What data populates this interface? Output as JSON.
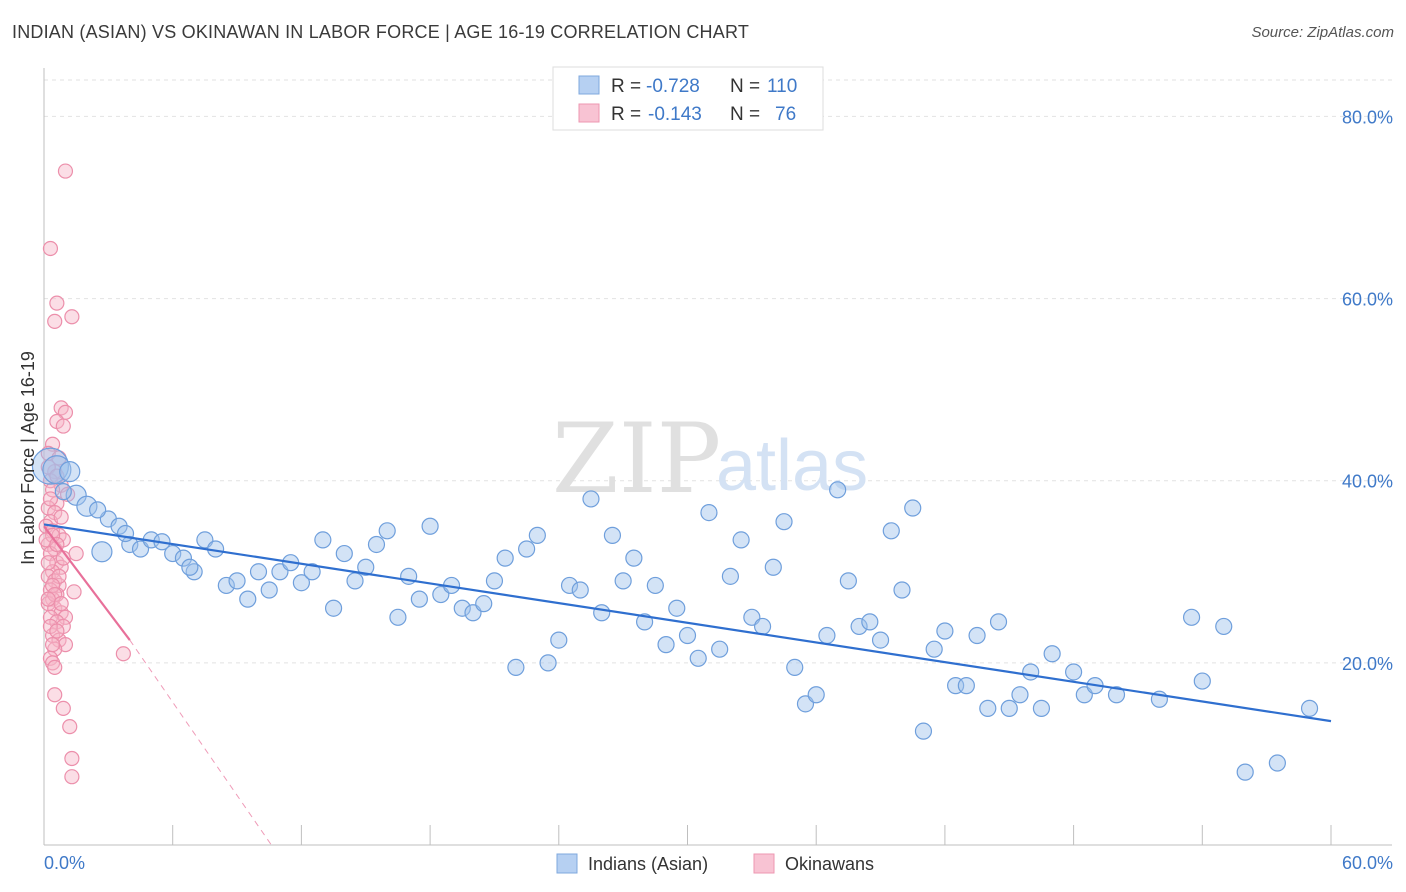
{
  "title": "INDIAN (ASIAN) VS OKINAWAN IN LABOR FORCE | AGE 16-19 CORRELATION CHART",
  "source": "Source: ZipAtlas.com",
  "watermark": {
    "zip": "ZIP",
    "atlas": "atlas"
  },
  "chart_data": {
    "type": "scatter",
    "title": "INDIAN (ASIAN) VS OKINAWAN IN LABOR FORCE | AGE 16-19 CORRELATION CHART",
    "xlabel": "",
    "ylabel": "In Labor Force | Age 16-19",
    "xlim": [
      0,
      60
    ],
    "ylim": [
      0,
      84
    ],
    "x_tick_labels": [
      "0.0%",
      "60.0%"
    ],
    "y_ticks": [
      20,
      40,
      60,
      80
    ],
    "y_tick_labels": [
      "20.0%",
      "40.0%",
      "60.0%",
      "80.0%"
    ],
    "legend": {
      "r_label": "R =",
      "n_label": "N =",
      "entries": [
        {
          "r": "-0.728",
          "n": "110"
        },
        {
          "r": "-0.143",
          "n": "76"
        }
      ]
    },
    "series": [
      {
        "name": "Indians (Asian)",
        "color": "#9ec0ea",
        "stroke": "#6f9fdc",
        "line_color": "#2f6fcf",
        "trend": {
          "x0": 0.0,
          "y0": 35.2,
          "x1": 60.0,
          "y1": 13.6
        },
        "points": [
          [
            0.3,
            41.6,
            18
          ],
          [
            0.6,
            41.2,
            14
          ],
          [
            1.5,
            38.4,
            10
          ],
          [
            2.0,
            37.2,
            10
          ],
          [
            3.0,
            35.8,
            8
          ],
          [
            3.5,
            35.0,
            8
          ],
          [
            4.0,
            33.0,
            8
          ],
          [
            4.5,
            32.5,
            8
          ],
          [
            5.0,
            33.5,
            8
          ],
          [
            2.7,
            32.2,
            10
          ],
          [
            5.5,
            33.3,
            8
          ],
          [
            6.0,
            32.0,
            8
          ],
          [
            6.5,
            31.5,
            8
          ],
          [
            7.0,
            30.0,
            8
          ],
          [
            7.5,
            33.5,
            8
          ],
          [
            8.0,
            32.5,
            8
          ],
          [
            8.5,
            28.5,
            8
          ],
          [
            9.0,
            29.0,
            8
          ],
          [
            9.5,
            27.0,
            8
          ],
          [
            10.0,
            30.0,
            8
          ],
          [
            10.5,
            28.0,
            8
          ],
          [
            11.0,
            30.0,
            8
          ],
          [
            11.5,
            31.0,
            8
          ],
          [
            12.0,
            28.8,
            8
          ],
          [
            12.5,
            30.0,
            8
          ],
          [
            13.0,
            33.5,
            8
          ],
          [
            13.5,
            26.0,
            8
          ],
          [
            14.0,
            32.0,
            8
          ],
          [
            14.5,
            29.0,
            8
          ],
          [
            15.0,
            30.5,
            8
          ],
          [
            15.5,
            33.0,
            8
          ],
          [
            16.0,
            34.5,
            8
          ],
          [
            16.5,
            25.0,
            8
          ],
          [
            17.0,
            29.5,
            8
          ],
          [
            17.5,
            27.0,
            8
          ],
          [
            18.0,
            35.0,
            8
          ],
          [
            18.5,
            27.5,
            8
          ],
          [
            19.0,
            28.5,
            8
          ],
          [
            19.5,
            26.0,
            8
          ],
          [
            20.0,
            25.5,
            8
          ],
          [
            20.5,
            26.5,
            8
          ],
          [
            21.0,
            29.0,
            8
          ],
          [
            21.5,
            31.5,
            8
          ],
          [
            22.0,
            19.5,
            8
          ],
          [
            22.5,
            32.5,
            8
          ],
          [
            23.0,
            34.0,
            8
          ],
          [
            23.5,
            20.0,
            8
          ],
          [
            24.0,
            22.5,
            8
          ],
          [
            24.5,
            28.5,
            8
          ],
          [
            25.0,
            28.0,
            8
          ],
          [
            25.5,
            38.0,
            8
          ],
          [
            26.0,
            25.5,
            8
          ],
          [
            26.5,
            34.0,
            8
          ],
          [
            27.0,
            29.0,
            8
          ],
          [
            27.5,
            31.5,
            8
          ],
          [
            28.0,
            24.5,
            8
          ],
          [
            28.5,
            28.5,
            8
          ],
          [
            29.0,
            22.0,
            8
          ],
          [
            29.5,
            26.0,
            8
          ],
          [
            30.0,
            23.0,
            8
          ],
          [
            30.5,
            20.5,
            8
          ],
          [
            31.0,
            36.5,
            8
          ],
          [
            31.5,
            21.5,
            8
          ],
          [
            32.0,
            29.5,
            8
          ],
          [
            32.5,
            33.5,
            8
          ],
          [
            33.0,
            25.0,
            8
          ],
          [
            33.5,
            24.0,
            8
          ],
          [
            34.0,
            30.5,
            8
          ],
          [
            34.5,
            35.5,
            8
          ],
          [
            35.0,
            19.5,
            8
          ],
          [
            35.5,
            15.5,
            8
          ],
          [
            36.0,
            16.5,
            8
          ],
          [
            36.5,
            23.0,
            8
          ],
          [
            37.0,
            39.0,
            8
          ],
          [
            37.5,
            29.0,
            8
          ],
          [
            38.0,
            24.0,
            8
          ],
          [
            38.5,
            24.5,
            8
          ],
          [
            39.0,
            22.5,
            8
          ],
          [
            39.5,
            34.5,
            8
          ],
          [
            40.0,
            28.0,
            8
          ],
          [
            40.5,
            37.0,
            8
          ],
          [
            41.0,
            12.5,
            8
          ],
          [
            41.5,
            21.5,
            8
          ],
          [
            42.0,
            23.5,
            8
          ],
          [
            42.5,
            17.5,
            8
          ],
          [
            43.0,
            17.5,
            8
          ],
          [
            43.5,
            23.0,
            8
          ],
          [
            44.0,
            15.0,
            8
          ],
          [
            44.5,
            24.5,
            8
          ],
          [
            45.0,
            15.0,
            8
          ],
          [
            45.5,
            16.5,
            8
          ],
          [
            46.0,
            19.0,
            8
          ],
          [
            46.5,
            15.0,
            8
          ],
          [
            47.0,
            21.0,
            8
          ],
          [
            48.0,
            19.0,
            8
          ],
          [
            48.5,
            16.5,
            8
          ],
          [
            49.0,
            17.5,
            8
          ],
          [
            50.0,
            16.5,
            8
          ],
          [
            52.0,
            16.0,
            8
          ],
          [
            53.5,
            25.0,
            8
          ],
          [
            54.0,
            18.0,
            8
          ],
          [
            55.0,
            24.0,
            8
          ],
          [
            56.0,
            8.0,
            8
          ],
          [
            57.5,
            9.0,
            8
          ],
          [
            59.0,
            15.0,
            8
          ],
          [
            1.2,
            41.0,
            10
          ],
          [
            0.9,
            38.8,
            8
          ],
          [
            2.5,
            36.8,
            8
          ],
          [
            3.8,
            34.2,
            8
          ],
          [
            6.8,
            30.5,
            8
          ]
        ]
      },
      {
        "name": "Okinawans",
        "color": "#f6b6c8",
        "stroke": "#ec8fab",
        "line_color": "#e8709a",
        "trend": {
          "x0": 0.0,
          "y0": 35.0,
          "x1": 4.0,
          "y1": 22.5
        },
        "trend_ext": {
          "x0": 4.0,
          "y0": 22.5,
          "x1": 10.6,
          "y1": 0.0
        },
        "points": [
          [
            1.0,
            74.0,
            7
          ],
          [
            0.3,
            65.5,
            7
          ],
          [
            0.6,
            59.5,
            7
          ],
          [
            0.5,
            57.5,
            7
          ],
          [
            1.3,
            58.0,
            7
          ],
          [
            0.8,
            48.0,
            7
          ],
          [
            1.0,
            47.5,
            7
          ],
          [
            0.6,
            46.5,
            7
          ],
          [
            0.9,
            46.0,
            7
          ],
          [
            0.4,
            44.0,
            7
          ],
          [
            0.2,
            43.0,
            7
          ],
          [
            0.7,
            42.5,
            7
          ],
          [
            0.5,
            41.0,
            7
          ],
          [
            0.3,
            40.0,
            7
          ],
          [
            0.8,
            39.5,
            7
          ],
          [
            0.4,
            39.0,
            7
          ],
          [
            1.1,
            38.5,
            7
          ],
          [
            0.6,
            37.5,
            7
          ],
          [
            0.2,
            37.0,
            7
          ],
          [
            0.5,
            36.5,
            7
          ],
          [
            0.3,
            35.5,
            7
          ],
          [
            0.1,
            35.0,
            7
          ],
          [
            0.4,
            34.5,
            7
          ],
          [
            0.7,
            34.0,
            7
          ],
          [
            0.9,
            33.5,
            7
          ],
          [
            0.2,
            33.0,
            7
          ],
          [
            0.5,
            32.5,
            7
          ],
          [
            0.3,
            32.0,
            7
          ],
          [
            1.5,
            32.0,
            7
          ],
          [
            0.6,
            31.0,
            7
          ],
          [
            0.8,
            30.5,
            7
          ],
          [
            0.4,
            30.0,
            7
          ],
          [
            0.2,
            29.5,
            7
          ],
          [
            0.5,
            29.0,
            7
          ],
          [
            0.7,
            28.5,
            7
          ],
          [
            0.3,
            28.0,
            7
          ],
          [
            1.4,
            27.8,
            7
          ],
          [
            0.6,
            27.5,
            7
          ],
          [
            0.4,
            27.0,
            7
          ],
          [
            0.2,
            26.5,
            7
          ],
          [
            0.5,
            26.0,
            7
          ],
          [
            0.8,
            25.5,
            7
          ],
          [
            0.3,
            25.0,
            7
          ],
          [
            1.0,
            25.0,
            7
          ],
          [
            0.6,
            24.5,
            7
          ],
          [
            0.9,
            24.0,
            7
          ],
          [
            0.4,
            23.0,
            7
          ],
          [
            0.7,
            22.5,
            7
          ],
          [
            1.0,
            22.0,
            7
          ],
          [
            0.5,
            21.5,
            7
          ],
          [
            0.3,
            20.5,
            7
          ],
          [
            0.4,
            20.0,
            7
          ],
          [
            0.5,
            19.5,
            7
          ],
          [
            3.7,
            21.0,
            7
          ],
          [
            0.5,
            16.5,
            7
          ],
          [
            0.9,
            15.0,
            7
          ],
          [
            1.2,
            13.0,
            7
          ],
          [
            1.3,
            9.5,
            7
          ],
          [
            1.3,
            7.5,
            7
          ],
          [
            0.2,
            41.5,
            7
          ],
          [
            0.6,
            40.5,
            7
          ],
          [
            0.3,
            38.0,
            7
          ],
          [
            0.8,
            36.0,
            7
          ],
          [
            0.4,
            34.0,
            7
          ],
          [
            0.1,
            33.5,
            7
          ],
          [
            0.6,
            33.0,
            7
          ],
          [
            0.9,
            31.5,
            7
          ],
          [
            0.2,
            31.0,
            7
          ],
          [
            0.7,
            29.5,
            7
          ],
          [
            0.4,
            28.5,
            7
          ],
          [
            0.5,
            27.5,
            7
          ],
          [
            0.2,
            27.0,
            7
          ],
          [
            0.8,
            26.5,
            7
          ],
          [
            0.3,
            24.0,
            7
          ],
          [
            0.6,
            23.5,
            7
          ],
          [
            0.4,
            22.0,
            7
          ]
        ]
      }
    ]
  }
}
